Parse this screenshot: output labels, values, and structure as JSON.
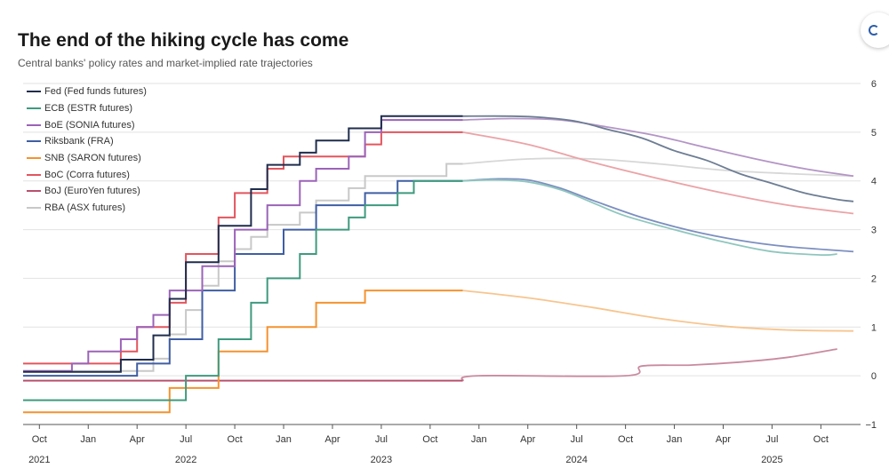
{
  "page": {
    "title": "The end of the hiking cycle has come",
    "subtitle": "Central banks' policy rates and market-implied rate trajectories"
  },
  "chart_data": {
    "type": "line",
    "title": "The end of the hiking cycle has come",
    "subtitle": "Central banks' policy rates and market-implied rate trajectories",
    "xlabel": "",
    "ylabel": "",
    "x_unit": "month",
    "xlim": [
      "2021-09",
      "2025-12"
    ],
    "ylim": [
      -1,
      6
    ],
    "y_ticks": [
      -1,
      0,
      1,
      2,
      3,
      4,
      5,
      6
    ],
    "y_axis_side": "right",
    "x_ticks": [
      {
        "label": "Oct",
        "x": "2021-10"
      },
      {
        "label": "Jan",
        "x": "2022-01"
      },
      {
        "label": "Apr",
        "x": "2022-04"
      },
      {
        "label": "Jul",
        "x": "2022-07"
      },
      {
        "label": "Oct",
        "x": "2022-10"
      },
      {
        "label": "Jan",
        "x": "2023-01"
      },
      {
        "label": "Apr",
        "x": "2023-04"
      },
      {
        "label": "Jul",
        "x": "2023-07"
      },
      {
        "label": "Oct",
        "x": "2023-10"
      },
      {
        "label": "Jan",
        "x": "2024-01"
      },
      {
        "label": "Apr",
        "x": "2024-04"
      },
      {
        "label": "Jul",
        "x": "2024-07"
      },
      {
        "label": "Oct",
        "x": "2024-10"
      },
      {
        "label": "Jan",
        "x": "2025-01"
      },
      {
        "label": "Apr",
        "x": "2025-04"
      },
      {
        "label": "Jul",
        "x": "2025-07"
      },
      {
        "label": "Oct",
        "x": "2025-10"
      }
    ],
    "year_labels": [
      {
        "label": "2021",
        "x": "2021-10"
      },
      {
        "label": "2022",
        "x": "2022-07"
      },
      {
        "label": "2023",
        "x": "2023-07"
      },
      {
        "label": "2024",
        "x": "2024-07"
      },
      {
        "label": "2025",
        "x": "2025-07"
      }
    ],
    "grid": true,
    "legend_position": "top-left",
    "series": [
      {
        "name": "Fed (Fed funds futures)",
        "color": "#1f2d4d",
        "history": [
          [
            "2021-09",
            0.08
          ],
          [
            "2022-03",
            0.33
          ],
          [
            "2022-05",
            0.83
          ],
          [
            "2022-06",
            1.58
          ],
          [
            "2022-07",
            2.33
          ],
          [
            "2022-09",
            3.08
          ],
          [
            "2022-11",
            3.83
          ],
          [
            "2022-12",
            4.33
          ],
          [
            "2023-02",
            4.58
          ],
          [
            "2023-03",
            4.83
          ],
          [
            "2023-05",
            5.08
          ],
          [
            "2023-07",
            5.33
          ],
          [
            "2023-12",
            5.33
          ]
        ],
        "forecast": [
          [
            "2023-12",
            5.33
          ],
          [
            "2024-03",
            5.33
          ],
          [
            "2024-05",
            5.3
          ],
          [
            "2024-07",
            5.22
          ],
          [
            "2024-09",
            5.05
          ],
          [
            "2024-11",
            4.88
          ],
          [
            "2025-01",
            4.62
          ],
          [
            "2025-03",
            4.42
          ],
          [
            "2025-05",
            4.15
          ],
          [
            "2025-07",
            3.95
          ],
          [
            "2025-09",
            3.75
          ],
          [
            "2025-11",
            3.62
          ],
          [
            "2025-12",
            3.58
          ]
        ],
        "forecast_color": "#6d7d94"
      },
      {
        "name": "ECB (ESTR futures)",
        "color": "#3f9a7e",
        "history": [
          [
            "2021-09",
            -0.5
          ],
          [
            "2022-07",
            0
          ],
          [
            "2022-09",
            0.75
          ],
          [
            "2022-11",
            1.5
          ],
          [
            "2022-12",
            2
          ],
          [
            "2023-02",
            2.5
          ],
          [
            "2023-03",
            3
          ],
          [
            "2023-05",
            3.25
          ],
          [
            "2023-06",
            3.5
          ],
          [
            "2023-08",
            3.75
          ],
          [
            "2023-09",
            4
          ],
          [
            "2023-12",
            4
          ]
        ],
        "forecast": [
          [
            "2023-12",
            4
          ],
          [
            "2024-02",
            4.02
          ],
          [
            "2024-04",
            3.98
          ],
          [
            "2024-06",
            3.82
          ],
          [
            "2024-08",
            3.55
          ],
          [
            "2024-10",
            3.28
          ],
          [
            "2025-01",
            3
          ],
          [
            "2025-04",
            2.75
          ],
          [
            "2025-07",
            2.55
          ],
          [
            "2025-10",
            2.48
          ],
          [
            "2025-11",
            2.5
          ]
        ],
        "forecast_color": "#8fc6bf"
      },
      {
        "name": "BoE (SONIA futures)",
        "color": "#9b63b8",
        "history": [
          [
            "2021-09",
            0.1
          ],
          [
            "2021-12",
            0.25
          ],
          [
            "2022-01",
            0.5
          ],
          [
            "2022-03",
            0.75
          ],
          [
            "2022-04",
            1
          ],
          [
            "2022-05",
            1.25
          ],
          [
            "2022-06",
            1.75
          ],
          [
            "2022-08",
            2.25
          ],
          [
            "2022-10",
            3
          ],
          [
            "2022-12",
            3.5
          ],
          [
            "2023-02",
            4
          ],
          [
            "2023-03",
            4.25
          ],
          [
            "2023-05",
            4.5
          ],
          [
            "2023-06",
            5
          ],
          [
            "2023-07",
            5.25
          ],
          [
            "2023-12",
            5.25
          ]
        ],
        "forecast": [
          [
            "2023-12",
            5.25
          ],
          [
            "2024-03",
            5.28
          ],
          [
            "2024-06",
            5.25
          ],
          [
            "2024-09",
            5.1
          ],
          [
            "2024-12",
            4.92
          ],
          [
            "2025-03",
            4.68
          ],
          [
            "2025-06",
            4.45
          ],
          [
            "2025-09",
            4.25
          ],
          [
            "2025-12",
            4.1
          ]
        ],
        "forecast_color": "#b495c6"
      },
      {
        "name": "Riksbank (FRA)",
        "color": "#3f5ea3",
        "history": [
          [
            "2021-09",
            0
          ],
          [
            "2022-04",
            0.25
          ],
          [
            "2022-06",
            0.75
          ],
          [
            "2022-08",
            1.75
          ],
          [
            "2022-10",
            2.5
          ],
          [
            "2023-01",
            3
          ],
          [
            "2023-03",
            3.5
          ],
          [
            "2023-06",
            3.75
          ],
          [
            "2023-08",
            4
          ],
          [
            "2023-12",
            4
          ]
        ],
        "forecast": [
          [
            "2023-12",
            4
          ],
          [
            "2024-02",
            4.04
          ],
          [
            "2024-04",
            4.02
          ],
          [
            "2024-06",
            3.85
          ],
          [
            "2024-08",
            3.6
          ],
          [
            "2024-11",
            3.25
          ],
          [
            "2025-02",
            2.98
          ],
          [
            "2025-05",
            2.78
          ],
          [
            "2025-08",
            2.65
          ],
          [
            "2025-12",
            2.55
          ]
        ],
        "forecast_color": "#7c8fc0"
      },
      {
        "name": "SNB (SARON futures)",
        "color": "#f5922f",
        "history": [
          [
            "2021-09",
            -0.75
          ],
          [
            "2022-06",
            -0.25
          ],
          [
            "2022-09",
            0.5
          ],
          [
            "2022-12",
            1
          ],
          [
            "2023-03",
            1.5
          ],
          [
            "2023-06",
            1.75
          ],
          [
            "2023-12",
            1.75
          ]
        ],
        "forecast": [
          [
            "2023-12",
            1.75
          ],
          [
            "2024-04",
            1.6
          ],
          [
            "2024-08",
            1.4
          ],
          [
            "2024-12",
            1.18
          ],
          [
            "2025-04",
            1.02
          ],
          [
            "2025-08",
            0.94
          ],
          [
            "2025-12",
            0.92
          ]
        ],
        "forecast_color": "#f7c58f"
      },
      {
        "name": "BoC (Corra futures)",
        "color": "#e3555e",
        "history": [
          [
            "2021-09",
            0.25
          ],
          [
            "2022-03",
            0.5
          ],
          [
            "2022-04",
            1
          ],
          [
            "2022-06",
            1.5
          ],
          [
            "2022-07",
            2.5
          ],
          [
            "2022-09",
            3.25
          ],
          [
            "2022-10",
            3.75
          ],
          [
            "2022-12",
            4.25
          ],
          [
            "2023-01",
            4.5
          ],
          [
            "2023-06",
            4.75
          ],
          [
            "2023-07",
            5
          ],
          [
            "2023-12",
            5
          ]
        ],
        "forecast": [
          [
            "2023-12",
            5
          ],
          [
            "2024-04",
            4.75
          ],
          [
            "2024-08",
            4.38
          ],
          [
            "2024-12",
            4.05
          ],
          [
            "2025-04",
            3.75
          ],
          [
            "2025-08",
            3.5
          ],
          [
            "2025-12",
            3.33
          ]
        ],
        "forecast_color": "#eba3a7"
      },
      {
        "name": "BoJ (EuroYen futures)",
        "color": "#b8506e",
        "history": [
          [
            "2021-09",
            -0.1
          ],
          [
            "2023-12",
            -0.1
          ]
        ],
        "forecast": [
          [
            "2023-12",
            -0.1
          ],
          [
            "2024-01",
            0
          ],
          [
            "2024-10",
            0
          ],
          [
            "2024-11",
            0.2
          ],
          [
            "2025-02",
            0.22
          ],
          [
            "2025-05",
            0.28
          ],
          [
            "2025-08",
            0.38
          ],
          [
            "2025-11",
            0.55
          ]
        ],
        "forecast_color": "#c98aa0"
      },
      {
        "name": "RBA (ASX futures)",
        "color": "#c8c8c8",
        "history": [
          [
            "2021-09",
            0.1
          ],
          [
            "2022-05",
            0.35
          ],
          [
            "2022-06",
            0.85
          ],
          [
            "2022-07",
            1.35
          ],
          [
            "2022-08",
            1.85
          ],
          [
            "2022-09",
            2.35
          ],
          [
            "2022-10",
            2.6
          ],
          [
            "2022-11",
            2.85
          ],
          [
            "2022-12",
            3.1
          ],
          [
            "2023-02",
            3.35
          ],
          [
            "2023-03",
            3.6
          ],
          [
            "2023-05",
            3.85
          ],
          [
            "2023-06",
            4.1
          ],
          [
            "2023-11",
            4.35
          ],
          [
            "2023-12",
            4.35
          ]
        ],
        "forecast": [
          [
            "2023-12",
            4.35
          ],
          [
            "2024-04",
            4.45
          ],
          [
            "2024-08",
            4.45
          ],
          [
            "2024-12",
            4.35
          ],
          [
            "2025-04",
            4.22
          ],
          [
            "2025-08",
            4.15
          ],
          [
            "2025-12",
            4.1
          ]
        ],
        "forecast_color": "#d7d7d7"
      }
    ]
  }
}
